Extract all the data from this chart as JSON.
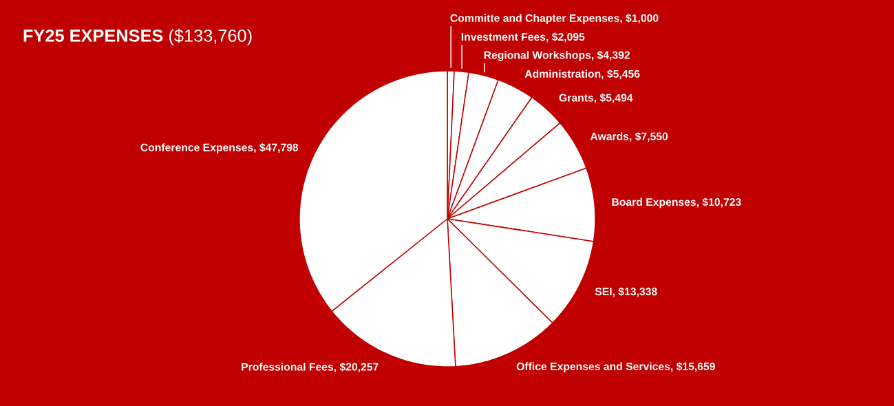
{
  "chart_data": {
    "type": "pie",
    "title": "**FY25 EXPENSES** ($133,760)",
    "categories": [
      "Committe and Chapter Expenses, $1,000",
      "Investment Fees, $2,095",
      "Regional Workshops, $4,392",
      "Administration, $5,456",
      "Grants, $5,494",
      "Awards, $7,550",
      "Board Expenses, $10,723",
      "SEI, $13,338",
      "Office Expenses and Services, $15,659",
      "Professional Fees, $20,257",
      "Conference Expenses, $47,798"
    ],
    "values": [
      1000,
      2095,
      4392,
      5456,
      5494,
      7550,
      10723,
      13338,
      15659,
      20257,
      47798
    ],
    "colors": [
      "#ffffff",
      "#ffffff",
      "#ffffff",
      "#ffffff",
      "#ffffff",
      "#ffffff",
      "#ffffff",
      "#ffffff",
      "#ffffff",
      "#ffffff",
      "#ffffff"
    ]
  }
}
